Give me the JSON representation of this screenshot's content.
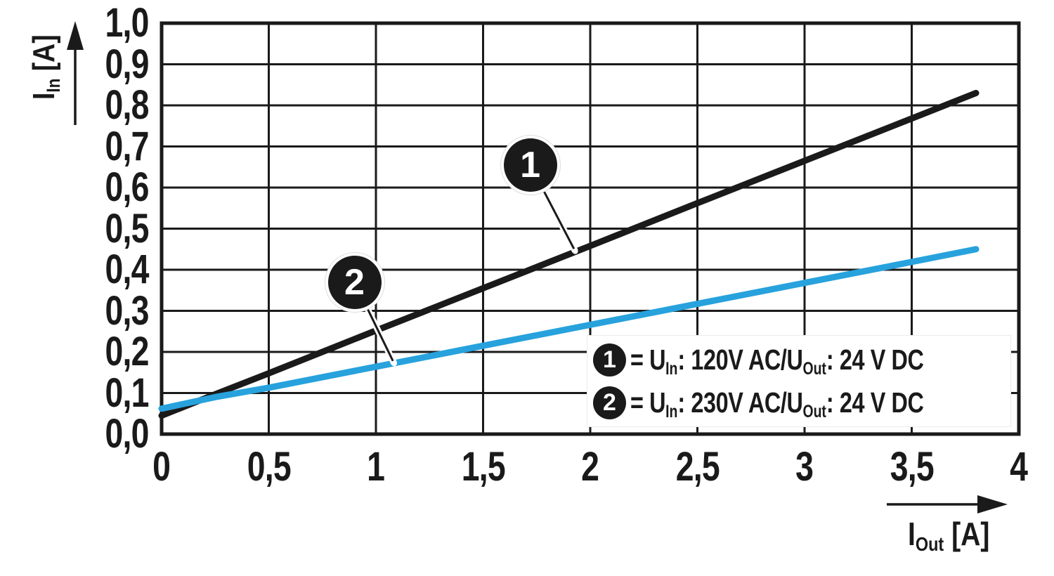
{
  "colors": {
    "ink": "#1a1a1a",
    "series1": "#1a1a1a",
    "series2": "#27a2dd",
    "background": "#ffffff",
    "grid": "#1a1a1a"
  },
  "chart_data": {
    "type": "line",
    "title": "",
    "xlabel_parts": {
      "base": "I",
      "sub": "Out",
      "unit": " [A]"
    },
    "ylabel_parts": {
      "base": "I",
      "sub": "In",
      "unit": " [A]"
    },
    "xlim": [
      0,
      4
    ],
    "ylim": [
      0,
      1
    ],
    "grid": true,
    "xticks": {
      "values": [
        0,
        0.5,
        1,
        1.5,
        2,
        2.5,
        3,
        3.5,
        4
      ],
      "labels": [
        "0",
        "0,5",
        "1",
        "1,5",
        "2",
        "2,5",
        "3",
        "3,5",
        "4"
      ]
    },
    "yticks": {
      "values": [
        0,
        0.1,
        0.2,
        0.3,
        0.4,
        0.5,
        0.6,
        0.7,
        0.8,
        0.9,
        1.0
      ],
      "labels": [
        "0,0",
        "0,1",
        "0,2",
        "0,3",
        "0,4",
        "0,5",
        "0,6",
        "0,7",
        "0,8",
        "0,9",
        "1,0"
      ]
    },
    "series": [
      {
        "name": "1",
        "label": "U_In: 120V AC / U_Out: 24 V DC",
        "color": "#1a1a1a",
        "points": [
          [
            0,
            0.045
          ],
          [
            0.25,
            0.097
          ],
          [
            0.5,
            0.148
          ],
          [
            1,
            0.252
          ],
          [
            1.5,
            0.355
          ],
          [
            2,
            0.458
          ],
          [
            2.5,
            0.562
          ],
          [
            3,
            0.665
          ],
          [
            3.5,
            0.768
          ],
          [
            3.8,
            0.83
          ]
        ]
      },
      {
        "name": "2",
        "label": "U_In: 230V AC / U_Out: 24 V DC",
        "color": "#27a2dd",
        "points": [
          [
            0,
            0.062
          ],
          [
            0.25,
            0.09
          ],
          [
            0.5,
            0.113
          ],
          [
            1,
            0.164
          ],
          [
            1.5,
            0.215
          ],
          [
            2,
            0.266
          ],
          [
            2.5,
            0.317
          ],
          [
            3,
            0.368
          ],
          [
            3.5,
            0.419
          ],
          [
            3.8,
            0.45
          ]
        ]
      }
    ],
    "callouts": [
      {
        "label": "1",
        "cx": 1.72,
        "cy": 0.655,
        "ax": 1.93,
        "ay": 0.445
      },
      {
        "label": "2",
        "cx": 0.9,
        "cy": 0.37,
        "ax": 1.085,
        "ay": 0.172
      }
    ],
    "legend": {
      "rows": [
        {
          "badge": "1",
          "eq": "= U",
          "sub1": "In",
          "mid": ": 120V AC/U",
          "sub2": "Out",
          "tail": ": 24 V DC"
        },
        {
          "badge": "2",
          "eq": "= U",
          "sub1": "In",
          "mid": ": 230V AC/U",
          "sub2": "Out",
          "tail": ": 24 V DC"
        }
      ]
    }
  }
}
